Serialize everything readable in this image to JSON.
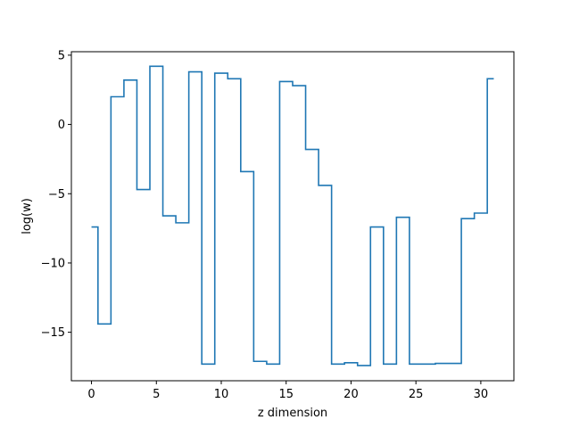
{
  "chart_data": {
    "type": "line",
    "drawstyle": "steps-mid",
    "title": "",
    "xlabel": "z dimension",
    "ylabel": "log(w)",
    "xlim": [
      -1.55,
      32.55
    ],
    "ylim": [
      -18.5,
      5.25
    ],
    "xticks": [
      0,
      5,
      10,
      15,
      20,
      25,
      30
    ],
    "xtick_labels": [
      "0",
      "5",
      "10",
      "15",
      "20",
      "25",
      "30"
    ],
    "yticks": [
      5,
      0,
      -5,
      -10,
      -15
    ],
    "ytick_labels": [
      "5",
      "0",
      "−5",
      "−10",
      "−15"
    ],
    "grid": false,
    "legend": "none",
    "line_color": "#1f77b4",
    "series": [
      {
        "x": [
          0,
          1,
          2,
          3,
          4,
          5,
          6,
          7,
          8,
          9,
          10,
          11,
          12,
          13,
          14,
          15,
          16,
          17,
          18,
          19,
          20,
          21,
          22,
          23,
          24,
          25,
          26,
          27,
          28,
          29,
          30,
          31
        ],
        "values": [
          -7.4,
          -14.4,
          2.0,
          3.2,
          -4.7,
          4.2,
          -6.6,
          -7.1,
          3.8,
          -17.3,
          3.7,
          3.3,
          -3.4,
          -17.1,
          -17.3,
          3.1,
          2.8,
          -1.8,
          -4.4,
          -17.3,
          -17.2,
          -17.4,
          -7.4,
          -17.3,
          -6.7,
          -17.3,
          -17.3,
          -17.25,
          -17.25,
          -6.8,
          -6.4,
          3.3
        ]
      }
    ]
  }
}
